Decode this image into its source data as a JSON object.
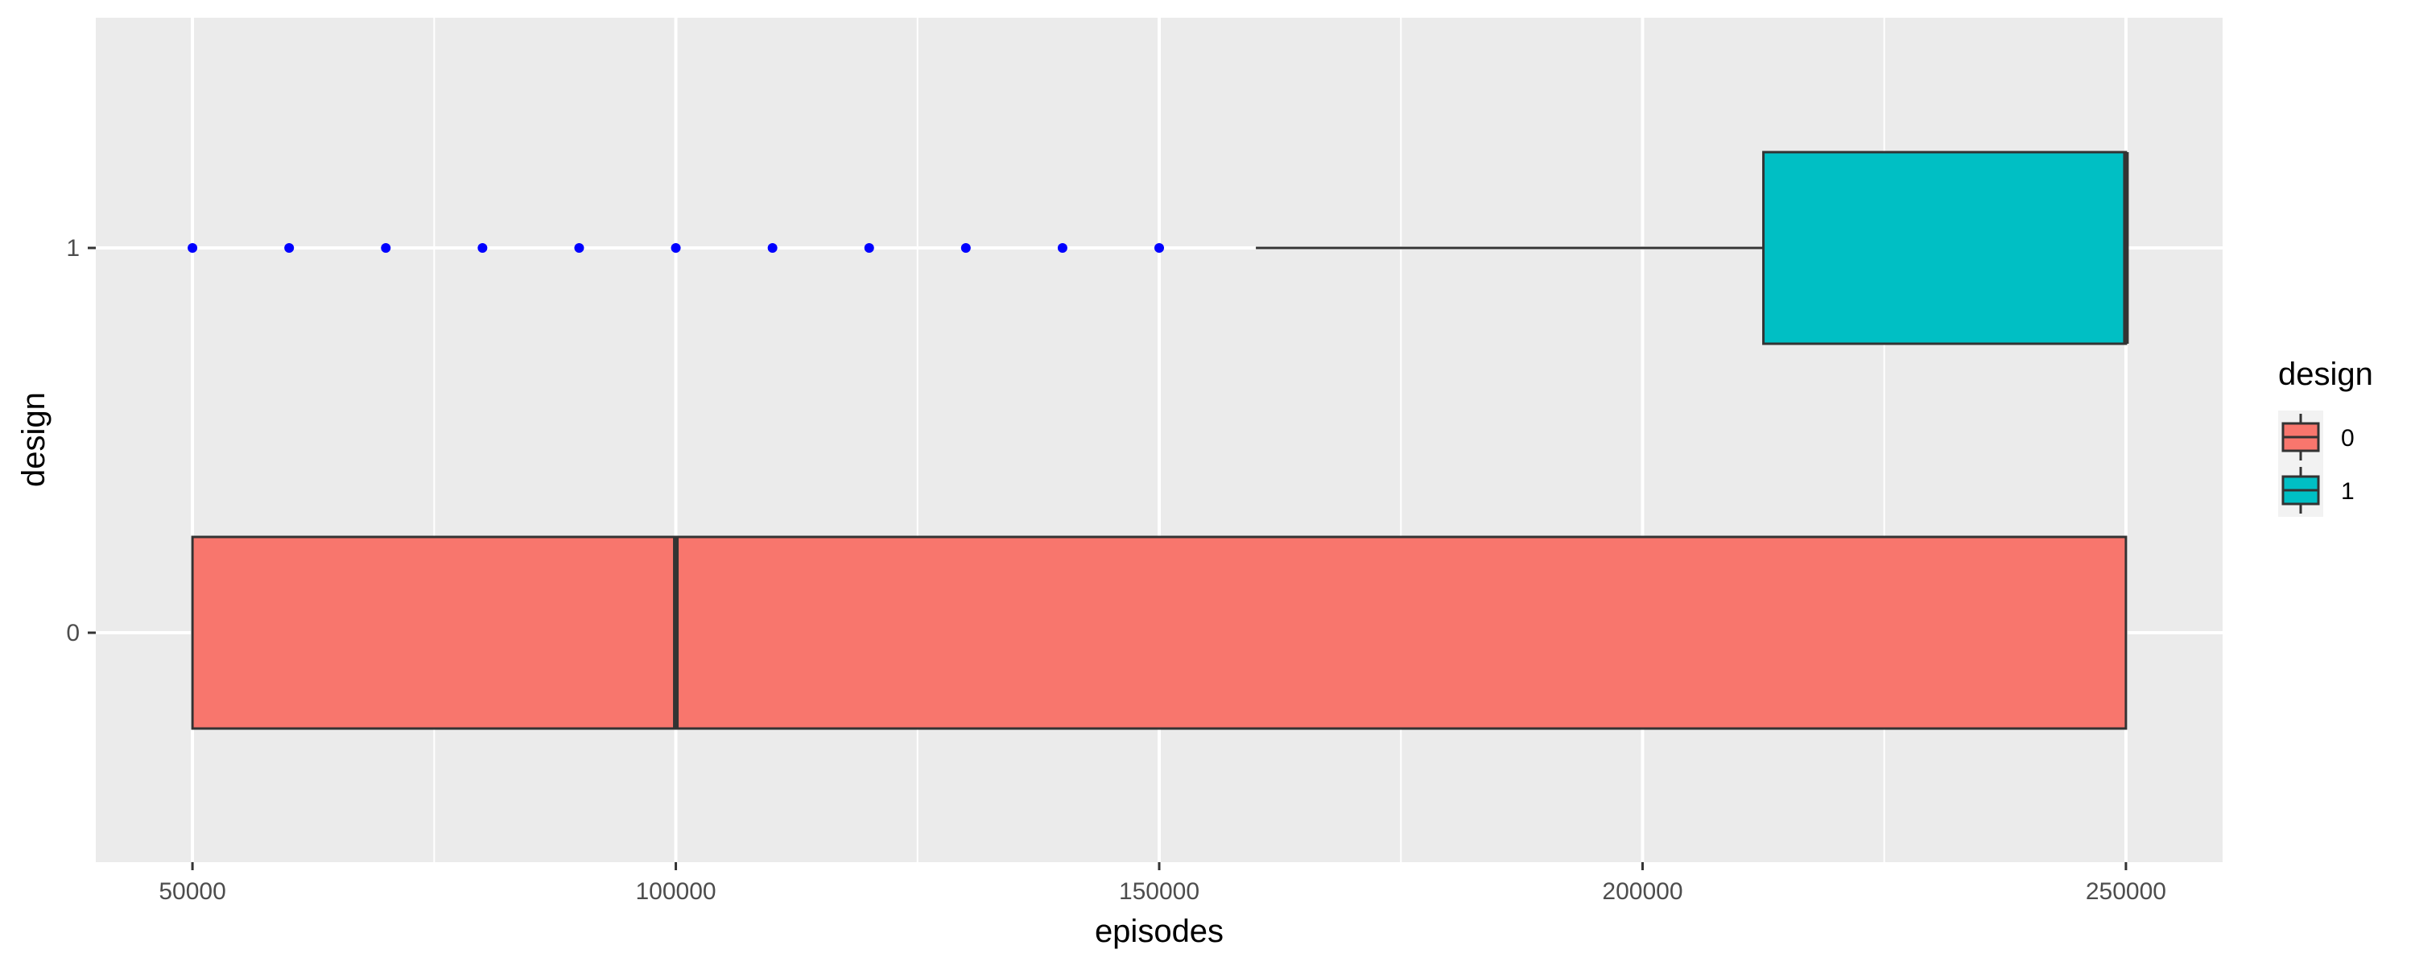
{
  "chart_data": {
    "type": "boxplot",
    "orientation": "horizontal",
    "xlabel": "episodes",
    "ylabel": "design",
    "xlim": [
      40000,
      260000
    ],
    "x_ticks": [
      50000,
      100000,
      150000,
      200000,
      250000
    ],
    "x_tick_labels": [
      "50000",
      "100000",
      "150000",
      "200000",
      "250000"
    ],
    "categories": [
      "0",
      "1"
    ],
    "grid": true,
    "legend": {
      "title": "design",
      "position": "right",
      "entries": [
        {
          "label": "0",
          "color": "#F8766D"
        },
        {
          "label": "1",
          "color": "#00BFC4"
        }
      ]
    },
    "series": [
      {
        "category": "0",
        "color": "#F8766D",
        "min": 50000,
        "q1": 50000,
        "median": 100000,
        "q3": 250000,
        "max": 250000,
        "outliers": []
      },
      {
        "category": "1",
        "color": "#00BFC4",
        "min": 160000,
        "q1": 212500,
        "median": 250000,
        "q3": 250000,
        "max": 250000,
        "outliers": [
          50000,
          60000,
          70000,
          80000,
          90000,
          100000,
          110000,
          120000,
          130000,
          140000,
          150000
        ],
        "outlier_color": "#0000FF"
      }
    ],
    "colors": {
      "panel_background": "#EBEBEB",
      "grid": "#FFFFFF",
      "box_outline": "#333333"
    }
  }
}
